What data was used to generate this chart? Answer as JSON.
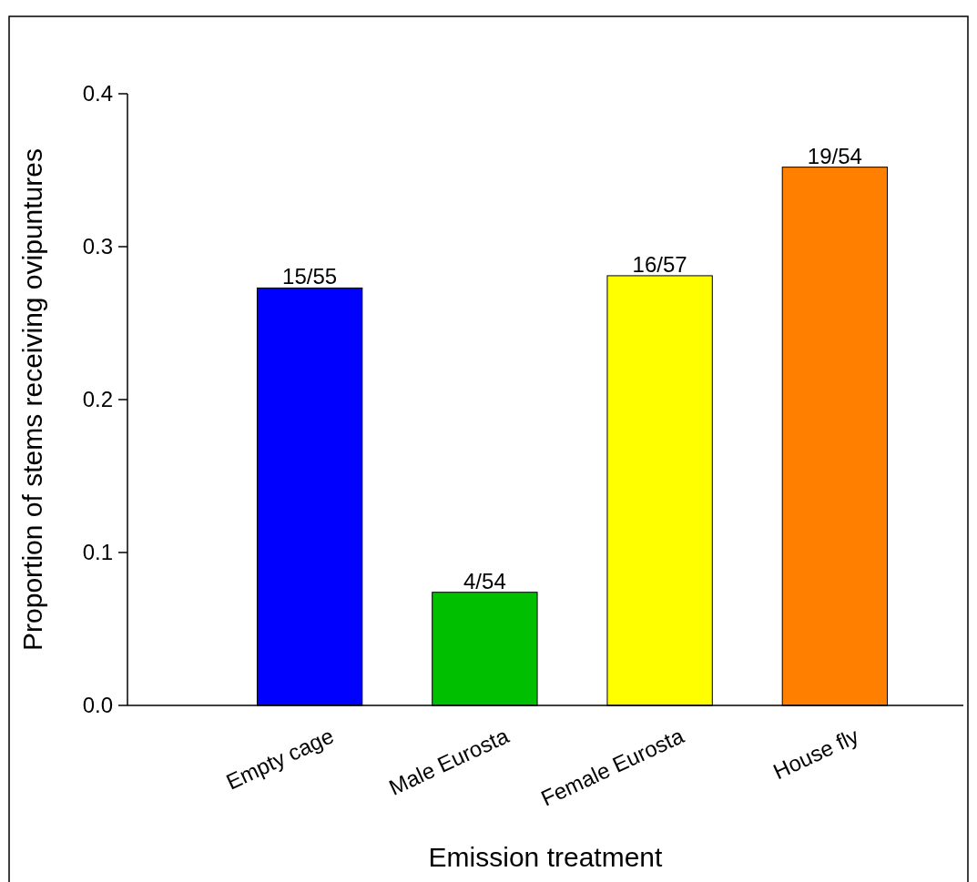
{
  "chart_data": {
    "type": "bar",
    "xlabel": "Emission treatment",
    "ylabel": "Proportion of stems receiving ovipuntures",
    "categories": [
      "Empty cage",
      "Male Eurosta",
      "Female Eurosta",
      "House fly"
    ],
    "values": [
      0.273,
      0.074,
      0.281,
      0.352
    ],
    "colors": [
      "#0000ff",
      "#00bf00",
      "#ffff00",
      "#ff8000"
    ],
    "value_labels": [
      "15/55",
      "4/54",
      "16/57",
      "19/54"
    ],
    "ylim": [
      0,
      0.4
    ],
    "yticks": [
      {
        "value": 0,
        "label": "0.0"
      },
      0.1,
      0.2,
      0.3,
      0.4
    ],
    "grid": false
  }
}
